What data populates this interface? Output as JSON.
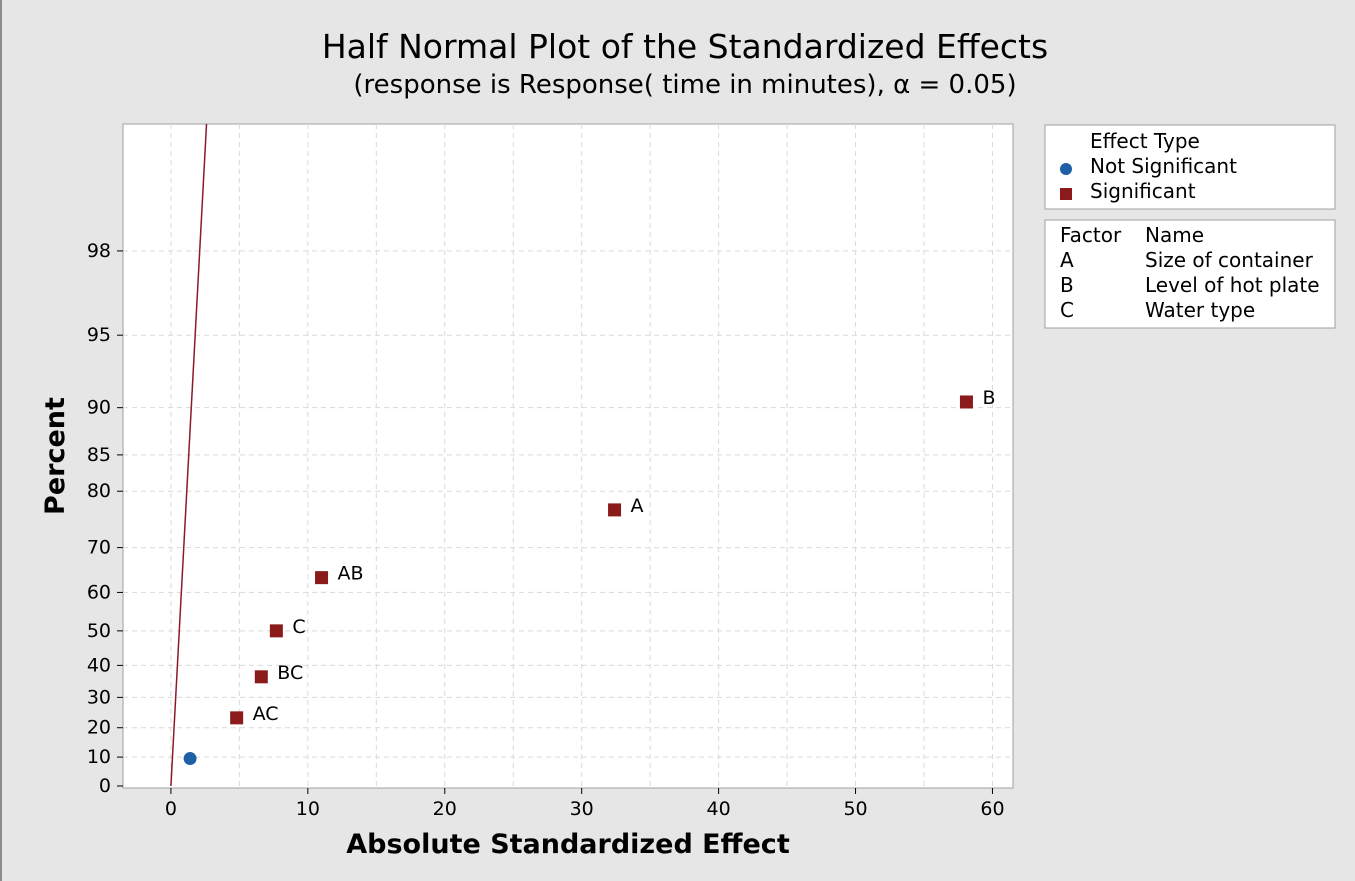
{
  "chart_data": {
    "type": "scatter",
    "title": "Half Normal Plot of the Standardized Effects",
    "subtitle": "(response is Response( time in minutes), α = 0.05)",
    "xlabel": "Absolute Standardized Effect",
    "ylabel": "Percent",
    "xlim": [
      -3.5,
      61.5
    ],
    "x_ticks": [
      0,
      10,
      20,
      30,
      40,
      50,
      60
    ],
    "y_ticks": [
      0,
      10,
      20,
      30,
      40,
      50,
      60,
      70,
      80,
      85,
      90,
      95,
      98
    ],
    "y_scale": "half-normal",
    "grid": true,
    "reference_line": {
      "x0": 0,
      "percent0": 0,
      "x1": 2.6,
      "percent1": 99.6,
      "color": "#8b1a2b"
    },
    "points": [
      {
        "label": "",
        "x": 1.4,
        "y": 9.5,
        "type": "Not Significant"
      },
      {
        "label": "AC",
        "x": 4.8,
        "y": 23.3,
        "type": "Significant"
      },
      {
        "label": "BC",
        "x": 6.6,
        "y": 36.5,
        "type": "Significant"
      },
      {
        "label": "C",
        "x": 7.7,
        "y": 50.0,
        "type": "Significant"
      },
      {
        "label": "AB",
        "x": 11.0,
        "y": 63.5,
        "type": "Significant"
      },
      {
        "label": "A",
        "x": 32.4,
        "y": 77.0,
        "type": "Significant"
      },
      {
        "label": "B",
        "x": 58.1,
        "y": 90.5,
        "type": "Significant"
      }
    ],
    "legend": {
      "placement": "right",
      "title": "Effect Type",
      "entries": [
        {
          "name": "Not Significant",
          "marker": "circle",
          "color": "#1f5fa8"
        },
        {
          "name": "Significant",
          "marker": "square",
          "color": "#8b1a1a"
        }
      ]
    },
    "factor_table": {
      "headers": [
        "Factor",
        "Name"
      ],
      "rows": [
        {
          "factor": "A",
          "name": "Size of container"
        },
        {
          "factor": "B",
          "name": "Level of hot plate"
        },
        {
          "factor": "C",
          "name": "Water type"
        }
      ]
    }
  },
  "colors": {
    "background": "#e6e6e6",
    "plot_background": "#ffffff",
    "grid": "#d9d9d9",
    "significant": "#8b1a1a",
    "not_significant": "#1f5fa8",
    "reference_line": "#8b1a2b"
  }
}
